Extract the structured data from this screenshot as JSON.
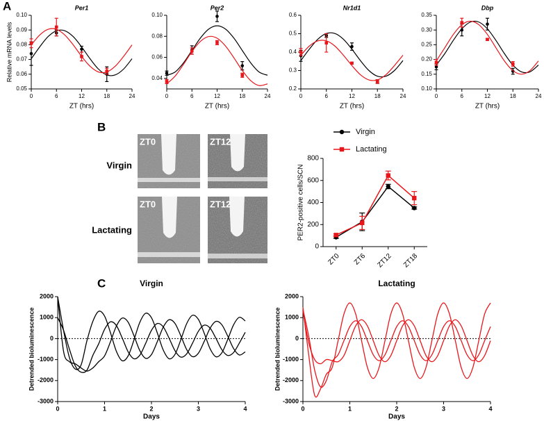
{
  "panel_labels": [
    "A",
    "B",
    "C"
  ],
  "micrographs": {
    "rows": [
      "Virgin",
      "Lactating"
    ],
    "tiles": [
      [
        "ZT0",
        "ZT12"
      ],
      [
        "ZT0",
        "ZT12"
      ]
    ]
  },
  "chart_data": [
    {
      "type": "line",
      "title": "Per1",
      "x_label": "ZT (hrs)",
      "y_label": "Relative mRNA levels",
      "x": [
        0,
        6,
        12,
        18
      ],
      "fit_x": [
        0,
        2,
        4,
        6,
        8,
        10,
        12,
        14,
        16,
        18,
        20,
        22,
        24
      ],
      "xlim": [
        0,
        24
      ],
      "xticks": [
        0,
        6,
        12,
        18,
        24
      ],
      "ylim": [
        0.05,
        0.1
      ],
      "yticks": [
        0.05,
        0.06,
        0.07,
        0.08,
        0.09,
        {
          "value": 0.1,
          "label": "0.10"
        }
      ],
      "series": [
        {
          "color": "#000000",
          "marker": "circle",
          "values": [
            0.074,
            0.088,
            0.077,
            0.06
          ],
          "errors": [
            0.008,
            0.002,
            0.002,
            0.005
          ],
          "fit": [
            0.0705,
            0.0785,
            0.0855,
            0.0895,
            0.0895,
            0.0855,
            0.0785,
            0.0705,
            0.0635,
            0.0595,
            0.0595,
            0.0635,
            0.0705
          ]
        },
        {
          "color": "#e8161b",
          "marker": "square",
          "values": [
            0.081,
            0.092,
            0.072,
            0.062
          ],
          "errors": [
            0.003,
            0.006,
            0.003,
            0.002
          ],
          "fit": [
            0.0799,
            0.0866,
            0.0905,
            0.0905,
            0.0866,
            0.0799,
            0.0721,
            0.0654,
            0.0615,
            0.0615,
            0.0654,
            0.0721,
            0.0799
          ]
        }
      ]
    },
    {
      "type": "line",
      "title": "Per2",
      "x_label": "ZT (hrs)",
      "x": [
        0,
        6,
        12,
        18
      ],
      "fit_x": [
        0,
        2,
        4,
        6,
        8,
        10,
        12,
        14,
        16,
        18,
        20,
        22,
        24
      ],
      "xlim": [
        0,
        24
      ],
      "xticks": [
        0,
        6,
        12,
        18,
        24
      ],
      "ylim": [
        0.03,
        0.1
      ],
      "yticks": [
        0.04,
        0.06,
        0.08,
        {
          "value": 0.1,
          "label": "0.10"
        }
      ],
      "series": [
        {
          "color": "#000000",
          "marker": "circle",
          "values": [
            0.045,
            0.067,
            0.099,
            0.052
          ],
          "errors": [
            0.002,
            0.004,
            0.005,
            0.004
          ],
          "fit": [
            0.043,
            0.0461,
            0.0548,
            0.0665,
            0.0783,
            0.0869,
            0.09,
            0.0869,
            0.0783,
            0.0665,
            0.0548,
            0.0461,
            0.043
          ]
        },
        {
          "color": "#e8161b",
          "marker": "square",
          "values": [
            0.037,
            0.066,
            0.074,
            0.043
          ],
          "errors": [
            0.002,
            0.003,
            0.002,
            0.002
          ],
          "fit": [
            0.0348,
            0.0422,
            0.0534,
            0.0655,
            0.0751,
            0.0798,
            0.0782,
            0.0708,
            0.0596,
            0.0475,
            0.0379,
            0.0332,
            0.0348
          ]
        }
      ]
    },
    {
      "type": "line",
      "title": "Nr1d1",
      "x_label": "ZT (hrs)",
      "x": [
        0,
        6,
        12,
        18
      ],
      "fit_x": [
        0,
        2,
        4,
        6,
        8,
        10,
        12,
        14,
        16,
        18,
        20,
        22,
        24
      ],
      "xlim": [
        0,
        24
      ],
      "xticks": [
        0,
        6,
        12,
        18,
        24
      ],
      "ylim": [
        0.2,
        0.6
      ],
      "yticks": [
        0.2,
        0.3,
        0.4,
        0.5,
        0.6
      ],
      "series": [
        {
          "color": "#000000",
          "marker": "circle",
          "values": [
            0.38,
            0.49,
            0.43,
            0.24
          ],
          "errors": [
            0.03,
            0.01,
            0.02,
            0.01
          ],
          "fit": [
            0.354,
            0.416,
            0.47,
            0.501,
            0.501,
            0.47,
            0.416,
            0.354,
            0.3,
            0.269,
            0.269,
            0.3,
            0.354
          ]
        },
        {
          "color": "#e8161b",
          "marker": "square",
          "values": [
            0.4,
            0.45,
            0.34,
            0.24
          ],
          "errors": [
            0.02,
            0.05,
            0.005,
            0.01
          ],
          "fit": [
            0.383,
            0.433,
            0.461,
            0.461,
            0.433,
            0.383,
            0.327,
            0.277,
            0.249,
            0.249,
            0.277,
            0.327,
            0.383
          ]
        }
      ]
    },
    {
      "type": "line",
      "title": "Dbp",
      "x_label": "ZT (hrs)",
      "x": [
        0,
        6,
        12,
        18
      ],
      "fit_x": [
        0,
        2,
        4,
        6,
        8,
        10,
        12,
        14,
        16,
        18,
        20,
        22,
        24
      ],
      "xlim": [
        0,
        24
      ],
      "xticks": [
        0,
        6,
        12,
        18,
        24
      ],
      "ylim": [
        0.1,
        0.35
      ],
      "yticks": [
        {
          "value": 0.1,
          "label": "0.10"
        },
        0.15,
        {
          "value": 0.2,
          "label": "0.20"
        },
        0.25,
        {
          "value": 0.3,
          "label": "0.30"
        },
        0.35
      ],
      "series": [
        {
          "color": "#000000",
          "marker": "circle",
          "values": [
            0.175,
            0.3,
            0.32,
            0.16
          ],
          "errors": [
            0.01,
            0.02,
            0.02,
            0.01
          ],
          "fit": [
            0.181,
            0.22,
            0.265,
            0.304,
            0.327,
            0.327,
            0.304,
            0.265,
            0.22,
            0.181,
            0.158,
            0.158,
            0.181
          ]
        },
        {
          "color": "#e8161b",
          "marker": "square",
          "values": [
            0.19,
            0.325,
            0.268,
            0.185
          ],
          "errors": [
            0.01,
            0.015,
            0.003,
            0.008
          ],
          "fit": [
            0.195,
            0.24,
            0.285,
            0.318,
            0.33,
            0.318,
            0.285,
            0.24,
            0.195,
            0.162,
            0.15,
            0.162,
            0.195
          ]
        }
      ]
    },
    {
      "type": "line",
      "y_label": "PER2-positive cells/SCN",
      "legend": "top",
      "xtick_rotation": -45,
      "categories": [
        "ZT0",
        "ZT6",
        "ZT12",
        "ZT18"
      ],
      "ylim": [
        0,
        800
      ],
      "yticks": [
        0,
        200,
        400,
        600,
        800
      ],
      "series": [
        {
          "name": "Virgin",
          "color": "#000000",
          "marker": "circle",
          "values": [
            85,
            225,
            545,
            350
          ],
          "errors": [
            10,
            80,
            20,
            10
          ]
        },
        {
          "name": "Lactating",
          "color": "#e8161b",
          "marker": "square",
          "values": [
            105,
            215,
            645,
            440
          ],
          "errors": [
            10,
            60,
            40,
            60
          ]
        }
      ]
    },
    {
      "type": "line",
      "title": "Virgin",
      "x_label": "Days",
      "y_label": "Detrended bioluminescence",
      "smooth": true,
      "zero_line": true,
      "x": [
        0,
        0.125,
        0.25,
        0.375,
        0.5,
        0.625,
        0.75,
        0.875,
        1,
        1.125,
        1.25,
        1.375,
        1.5,
        1.625,
        1.75,
        1.875,
        2,
        2.125,
        2.25,
        2.375,
        2.5,
        2.625,
        2.75,
        2.875,
        3,
        3.125,
        3.25,
        3.375,
        3.5,
        3.625,
        3.75,
        3.875,
        4
      ],
      "xlim": [
        0,
        4
      ],
      "xticks": [
        0,
        1,
        2,
        3,
        4
      ],
      "ylim": [
        -3000,
        2000
      ],
      "yticks": [
        -3000,
        -2000,
        -1000,
        0,
        1000,
        2000
      ],
      "series": [
        {
          "color": "#000000",
          "values": [
            2000,
            400,
            -900,
            -1450,
            -1250,
            -93,
            822,
            1301,
            1074,
            286,
            -594,
            -1054,
            -835,
            -78,
            766,
            1207,
            996,
            271,
            -537,
            -959,
            -758,
            -63,
            709,
            1112,
            919,
            256,
            -481,
            -864,
            -680,
            -49,
            653,
            1017,
            841
          ]
        },
        {
          "color": "#000000",
          "values": [
            1000,
            400,
            -500,
            -1300,
            -1600,
            -1500,
            -800,
            -245,
            441,
            799,
            628,
            39,
            -617,
            -960,
            -796,
            -233,
            394,
            720,
            563,
            26,
            -570,
            -881,
            -731,
            -220,
            347,
            641,
            499,
            14,
            -523,
            -801,
            -666,
            -208,
            300
          ]
        },
        {
          "color": "#000000",
          "values": [
            2000,
            -600,
            -1100,
            -1200,
            -1400,
            -1550,
            -1400,
            -1100,
            -825,
            -158,
            588,
            978,
            793,
            151,
            -564,
            -939,
            -760,
            -145,
            541,
            899,
            728,
            139,
            -517,
            -860,
            -696,
            -133,
            494,
            820,
            663,
            126,
            -470,
            -781,
            -631
          ]
        }
      ]
    },
    {
      "type": "line",
      "title": "Lactating",
      "x_label": "Days",
      "y_label": "Detrended bioluminescence",
      "smooth": true,
      "zero_line": true,
      "x": [
        0,
        0.125,
        0.25,
        0.375,
        0.5,
        0.625,
        0.75,
        0.875,
        1,
        1.125,
        1.25,
        1.375,
        1.5,
        1.625,
        1.75,
        1.875,
        2,
        2.125,
        2.25,
        2.375,
        2.5,
        2.625,
        2.75,
        2.875,
        3,
        3.125,
        3.25,
        3.375,
        3.5,
        3.625,
        3.75,
        3.875,
        4
      ],
      "xlim": [
        0,
        4
      ],
      "xticks": [
        0,
        1,
        2,
        3,
        4
      ],
      "ylim": [
        -3000,
        2000
      ],
      "yticks": [
        -3000,
        -2000,
        -1000,
        0,
        1000,
        2000
      ],
      "series": [
        {
          "color": "#e8161b",
          "values": [
            1500,
            -800,
            -2700,
            -2400,
            -1700,
            -1373,
            -100,
            1173,
            1700,
            1173,
            -100,
            -1373,
            -1900,
            -1373,
            -100,
            1173,
            1700,
            1173,
            -100,
            -1373,
            -1900,
            -1373,
            -100,
            1173,
            1700,
            1173,
            -100,
            -1373,
            -1900,
            -1373,
            -100,
            1173,
            1700
          ]
        },
        {
          "color": "#e8161b",
          "values": [
            1400,
            100,
            -1500,
            -2300,
            -2000,
            -1100,
            -772,
            -100,
            572,
            850,
            572,
            -100,
            -772,
            -1050,
            -772,
            -100,
            572,
            850,
            572,
            -100,
            -772,
            -1050,
            -772,
            -100,
            572,
            850,
            572,
            -100,
            -772,
            -1050,
            -772,
            -100,
            572
          ]
        },
        {
          "color": "#e8161b",
          "values": [
            1300,
            -200,
            -1000,
            -1200,
            -1000,
            -1050,
            -1100,
            -807,
            -100,
            607,
            900,
            607,
            -100,
            -807,
            -1100,
            -807,
            -100,
            607,
            900,
            607,
            -100,
            -807,
            -1100,
            -807,
            -100,
            607,
            900,
            607,
            -100,
            -807,
            -1100,
            -807,
            -100
          ]
        }
      ]
    }
  ]
}
